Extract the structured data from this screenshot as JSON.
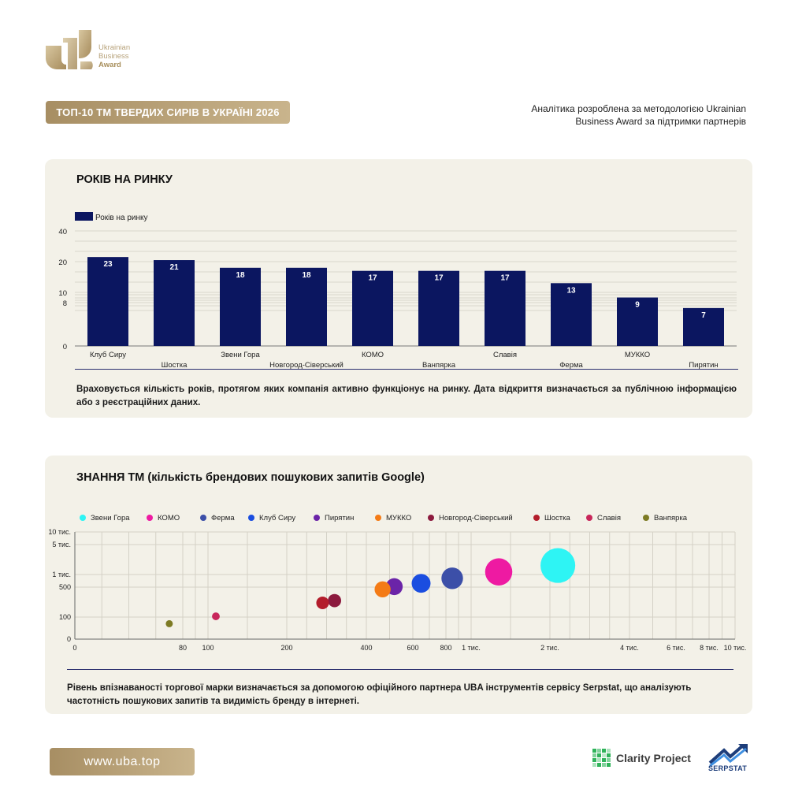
{
  "logo": {
    "line1": "Ukrainian",
    "line2": "Business",
    "line3": "Award"
  },
  "header": {
    "title": "ТОП-10 ТМ ТВЕРДИХ СИРІВ В УКРАЇНІ 2026",
    "note_line1": "Аналітика розроблена за методологією Ukrainian",
    "note_line2": "Business Award за підтримки партнерів"
  },
  "colors": {
    "gold": "#b59d72",
    "navy": "#0b1660",
    "panel": "#f3f1e8"
  },
  "chart_data": [
    {
      "type": "bar",
      "title": "РОКІВ НА РИНКУ",
      "series": [
        {
          "name": "Років на ринку",
          "values": [
            23,
            21,
            18,
            18,
            17,
            17,
            17,
            13,
            9,
            7
          ]
        }
      ],
      "categories": [
        "Клуб Сиру",
        "Шостка",
        "Звени Гора",
        "Новгород-Сіверський",
        "КОМО",
        "Ванпярка",
        "Славія",
        "Ферма",
        "МУККО",
        "Пирятин"
      ],
      "yticks": [
        "40",
        "20",
        "10",
        "8",
        "0"
      ],
      "legend": "top-left",
      "color": "#0b1660"
    },
    {
      "type": "scatter",
      "title": "ЗНАННЯ ТМ (кількість брендових пошукових запитів Google)",
      "legend": "top",
      "xticks": [
        "0",
        "80",
        "100",
        "200",
        "400",
        "600",
        "800",
        "1 тис.",
        "2 тис.",
        "4 тис.",
        "6 тис.",
        "8 тис.",
        "10 тис."
      ],
      "yticks": [
        "10 тис.",
        "5 тис.",
        "1 тис.",
        "500",
        "100",
        "0"
      ],
      "series": [
        {
          "name": "Звени Гора",
          "x": 2200,
          "y": 2200,
          "size": 2200,
          "color": "#2ef4f4"
        },
        {
          "name": "КОМО",
          "x": 1350,
          "y": 1350,
          "size": 1350,
          "color": "#ee1aa2"
        },
        {
          "name": "Ферма",
          "x": 850,
          "y": 850,
          "size": 850,
          "color": "#3c4fa8"
        },
        {
          "name": "Клуб Сиру",
          "x": 650,
          "y": 650,
          "size": 650,
          "color": "#1a4de0"
        },
        {
          "name": "Пирятин",
          "x": 520,
          "y": 520,
          "size": 520,
          "color": "#6b24a8"
        },
        {
          "name": "МУККО",
          "x": 470,
          "y": 470,
          "size": 470,
          "color": "#f47b16"
        },
        {
          "name": "Новгород-Сіверський",
          "x": 320,
          "y": 320,
          "size": 320,
          "color": "#8c1a3e"
        },
        {
          "name": "Шостка",
          "x": 290,
          "y": 290,
          "size": 290,
          "color": "#b31d2b"
        },
        {
          "name": "Славія",
          "x": 110,
          "y": 110,
          "size": 110,
          "color": "#c8265a"
        },
        {
          "name": "Ванпярка",
          "x": 70,
          "y": 70,
          "size": 70,
          "color": "#7d7b24"
        }
      ]
    }
  ],
  "descriptions": {
    "years": "Враховується кількість років, протягом яких компанія активно функціонує на ринку. Дата відкриття визначається за публічною інформацією або з реєстраційних даних.",
    "awareness": "Рівень впізнаваності торгової марки визначається за допомогою офіційного партнера UBA інструментів сервісу Serpstat, що аналізують частотність пошукових запитів та видимість бренду в інтернеті."
  },
  "footer": {
    "site": "www.uba.top",
    "partner1": "Clarity Project",
    "partner2": "SERPSTAT"
  }
}
